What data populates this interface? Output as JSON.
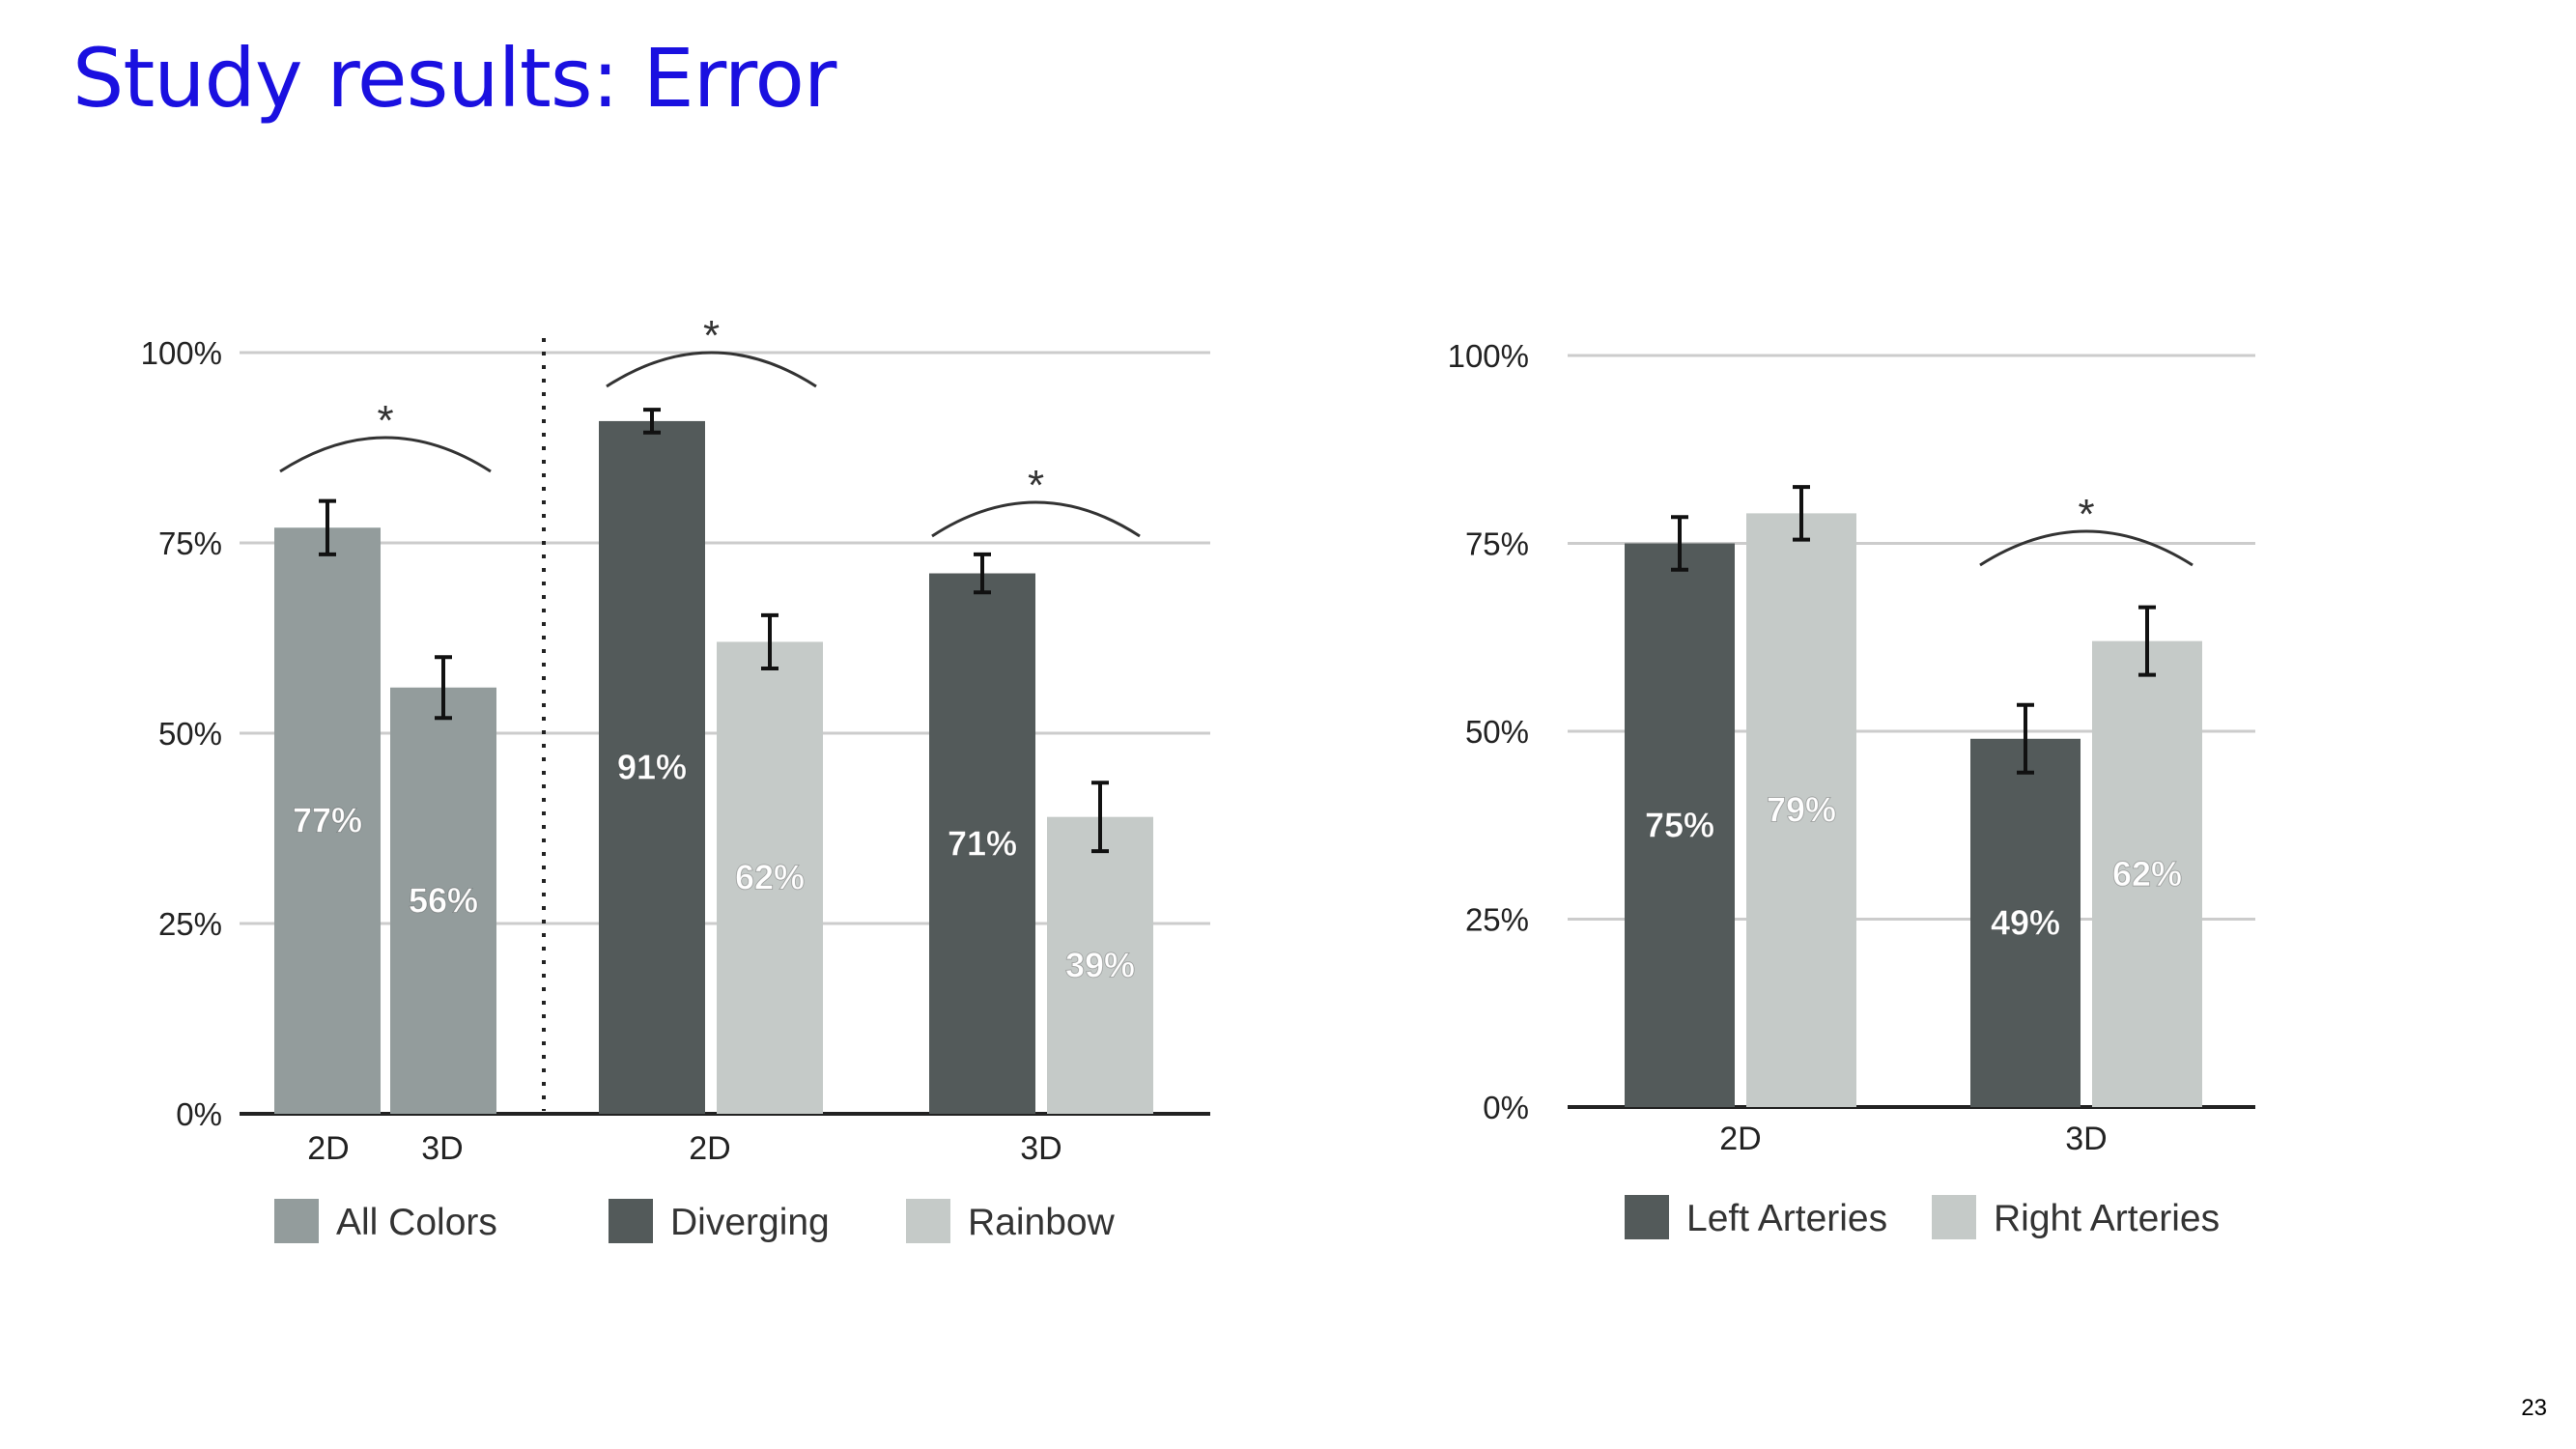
{
  "slide": {
    "title": "Study results: Error",
    "page_number": "23"
  },
  "colors": {
    "title": "#1a10e0",
    "all_colors": "#939c9c",
    "dark": "#535a5a",
    "light": "#c5cac8",
    "grid": "#cccccc",
    "axis": "#222222",
    "bar_label": "#ffffff"
  },
  "chart_data": [
    {
      "type": "bar",
      "y_ticks": [
        "0%",
        "25%",
        "50%",
        "75%",
        "100%"
      ],
      "ylim": [
        0,
        100
      ],
      "grid": true,
      "legend": {
        "placement": "bottom",
        "entries": [
          {
            "label": "All Colors",
            "color": "#939c9c"
          },
          {
            "label": "Diverging",
            "color": "#535a5a"
          },
          {
            "label": "Rainbow",
            "color": "#c5cac8"
          }
        ]
      },
      "x_labels": [
        "2D",
        "3D",
        "2D",
        "3D"
      ],
      "divider": "dotted line between All Colors group and Diverging/Rainbow groups",
      "groups": [
        {
          "label": "",
          "bars": [
            {
              "label": "77%",
              "value": 77,
              "error": 3.5,
              "color": "#939c9c"
            },
            {
              "label": "56%",
              "value": 56,
              "error": 4,
              "color": "#939c9c"
            }
          ],
          "significance": "*"
        },
        {
          "label": "2D",
          "bars": [
            {
              "label": "91%",
              "value": 91,
              "error": 1.5,
              "color": "#535a5a"
            },
            {
              "label": "62%",
              "value": 62,
              "error": 3.5,
              "color": "#c5cac8"
            }
          ],
          "significance": "*"
        },
        {
          "label": "3D",
          "bars": [
            {
              "label": "71%",
              "value": 71,
              "error": 2.5,
              "color": "#535a5a"
            },
            {
              "label": "39%",
              "value": 39,
              "error": 4.5,
              "color": "#c5cac8"
            }
          ],
          "significance": "*"
        }
      ]
    },
    {
      "type": "bar",
      "y_ticks": [
        "0%",
        "25%",
        "50%",
        "75%",
        "100%"
      ],
      "ylim": [
        0,
        100
      ],
      "grid": true,
      "legend": {
        "placement": "bottom",
        "entries": [
          {
            "label": "Left Arteries",
            "color": "#535a5a"
          },
          {
            "label": "Right Arteries",
            "color": "#c5cac8"
          }
        ]
      },
      "categories": [
        "2D",
        "3D"
      ],
      "series": [
        {
          "name": "Left Arteries",
          "values": [
            75,
            49
          ],
          "labels": [
            "75%",
            "49%"
          ],
          "errors": [
            3.5,
            4.5
          ]
        },
        {
          "name": "Right Arteries",
          "values": [
            79,
            62
          ],
          "labels": [
            "79%",
            "62%"
          ],
          "errors": [
            3.5,
            4.5
          ]
        }
      ],
      "significance": [
        {
          "category": "3D",
          "mark": "*"
        }
      ]
    }
  ]
}
